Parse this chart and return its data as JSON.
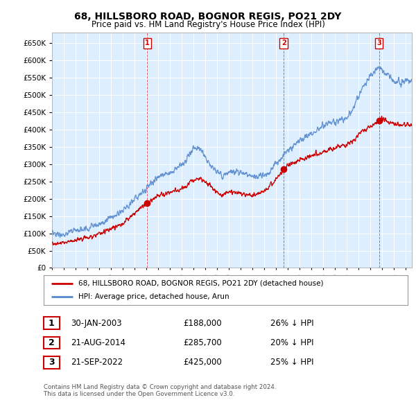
{
  "title": "68, HILLSBORO ROAD, BOGNOR REGIS, PO21 2DY",
  "subtitle": "Price paid vs. HM Land Registry's House Price Index (HPI)",
  "legend_label_red": "68, HILLSBORO ROAD, BOGNOR REGIS, PO21 2DY (detached house)",
  "legend_label_blue": "HPI: Average price, detached house, Arun",
  "footer_line1": "Contains HM Land Registry data © Crown copyright and database right 2024.",
  "footer_line2": "This data is licensed under the Open Government Licence v3.0.",
  "transactions": [
    {
      "num": 1,
      "date": "30-JAN-2003",
      "price": "£188,000",
      "hpi": "26% ↓ HPI"
    },
    {
      "num": 2,
      "date": "21-AUG-2014",
      "price": "£285,700",
      "hpi": "20% ↓ HPI"
    },
    {
      "num": 3,
      "date": "21-SEP-2022",
      "price": "£425,000",
      "hpi": "25% ↓ HPI"
    }
  ],
  "sale_dates_years": [
    2003.08,
    2014.64,
    2022.72
  ],
  "sale_prices": [
    188000,
    285700,
    425000
  ],
  "ylim": [
    0,
    680000
  ],
  "yticks": [
    0,
    50000,
    100000,
    150000,
    200000,
    250000,
    300000,
    350000,
    400000,
    450000,
    500000,
    550000,
    600000,
    650000
  ],
  "xmin": 1995.0,
  "xmax": 2025.5,
  "color_red": "#cc0000",
  "color_blue": "#5588cc",
  "color_grid": "#cccccc",
  "background_color": "#ffffff",
  "plot_bg_color": "#ddeeff"
}
